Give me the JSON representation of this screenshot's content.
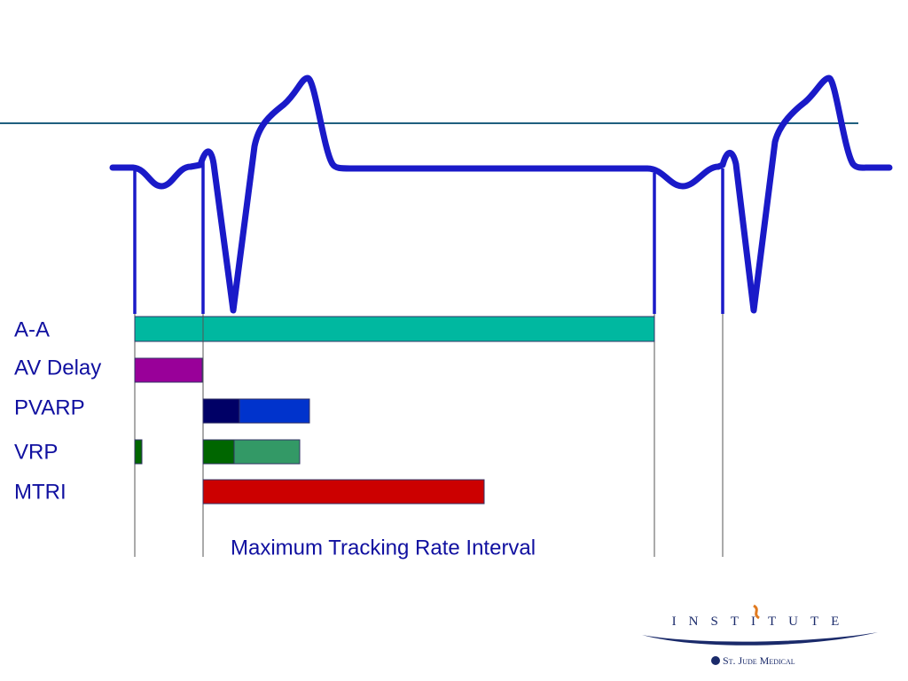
{
  "rows": [
    "A-A",
    "AV Delay",
    "PVARP",
    "VRP",
    "MTRI"
  ],
  "caption": "Maximum Tracking Rate Interval",
  "logo": {
    "name": "Institute",
    "company": "St. Jude Medical"
  }
}
